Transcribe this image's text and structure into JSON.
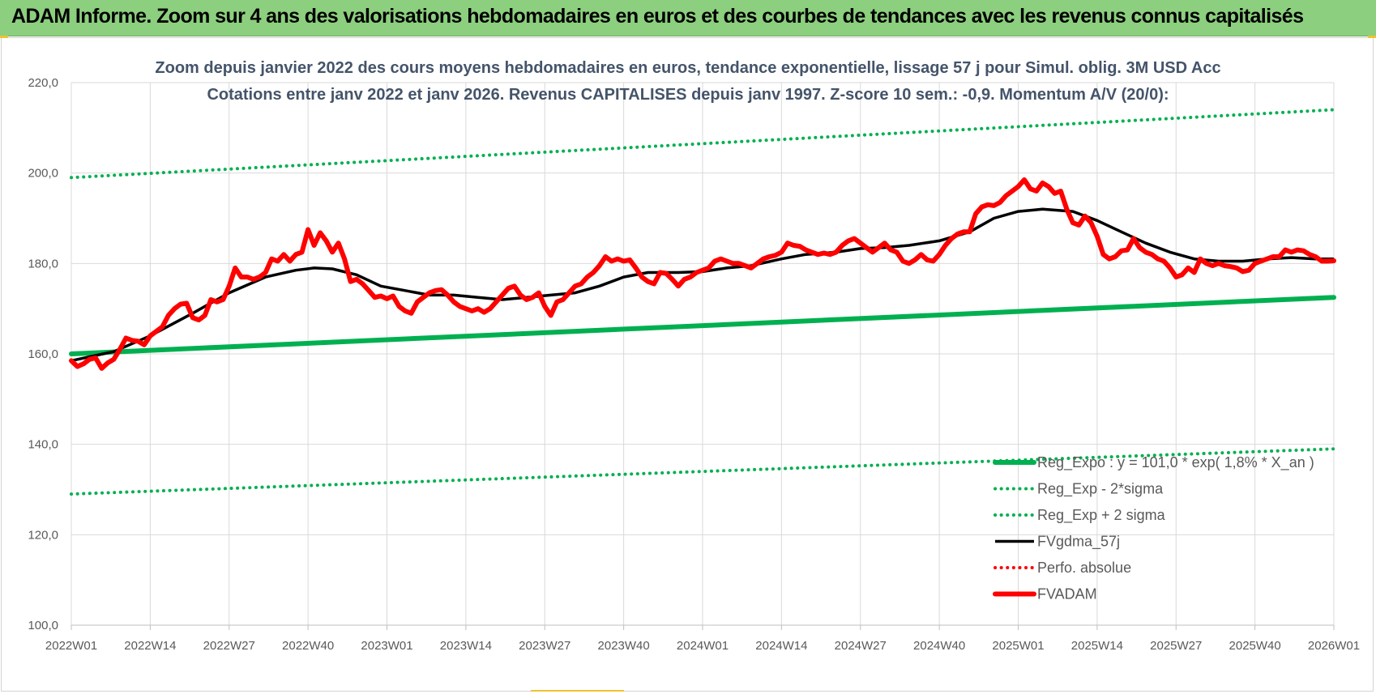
{
  "header": {
    "title": "ADAM Informe. Zoom sur 4 ans des valorisations hebdomadaires en euros et des courbes de tendances avec les revenus connus capitalisés"
  },
  "colors": {
    "header_bg": "#8ccf7e",
    "trend": "#00b050",
    "moving_average": "#000000",
    "price": "#ff0000",
    "title_text": "#44546a"
  },
  "chart_data": {
    "type": "line",
    "title_lines": [
      "Zoom depuis janvier 2022 des cours moyens hebdomadaires en euros, tendance exponentielle, lissage 57 j pour Simul. oblig. 3M USD Acc",
      "Cotations entre janv 2022 et janv 2026. Revenus CAPITALISES depuis janv 1997. Z-score 10 sem.: -0,9. Momentum A/V (20/0):"
    ],
    "x_tick_labels": [
      "2022W01",
      "2022W14",
      "2022W27",
      "2022W40",
      "2023W01",
      "2023W14",
      "2023W27",
      "2023W40",
      "2024W01",
      "2024W14",
      "2024W27",
      "2024W40",
      "2025W01",
      "2025W14",
      "2025W27",
      "2025W40",
      "2026W01"
    ],
    "x_range_weeks": [
      0,
      208
    ],
    "ylim": [
      100,
      220
    ],
    "y_ticks": [
      "100,0",
      "120,0",
      "140,0",
      "160,0",
      "180,0",
      "200,0",
      "220,0"
    ],
    "y_tick_values": [
      100,
      120,
      140,
      160,
      180,
      200,
      220
    ],
    "grid": "vertical and horizontal",
    "legend_position": "bottom-right",
    "series": [
      {
        "name": "Reg_Expo : y = 101,0 * exp( 1,8% *  X_an )",
        "key": "reg",
        "style": "solid-thick",
        "color": "#00b050",
        "points": [
          [
            0,
            160.0
          ],
          [
            208,
            172.5
          ]
        ]
      },
      {
        "name": "Reg_Exp - 2*sigma",
        "key": "lower",
        "style": "dotted",
        "color": "#00b050",
        "points": [
          [
            0,
            129.0
          ],
          [
            208,
            139.0
          ]
        ]
      },
      {
        "name": "Reg_Exp + 2 sigma",
        "key": "upper",
        "style": "dotted",
        "color": "#00b050",
        "points": [
          [
            0,
            199.0
          ],
          [
            208,
            214.0
          ]
        ]
      },
      {
        "name": "FVgdma_57j",
        "key": "ma",
        "style": "solid",
        "color": "#000000",
        "points": [
          [
            0,
            158.5
          ],
          [
            7,
            160.5
          ],
          [
            13,
            164
          ],
          [
            20,
            169
          ],
          [
            26,
            173.5
          ],
          [
            32,
            177
          ],
          [
            37,
            178.5
          ],
          [
            40,
            179
          ],
          [
            43,
            178.8
          ],
          [
            47,
            177.5
          ],
          [
            51,
            175
          ],
          [
            55,
            174
          ],
          [
            59,
            173
          ],
          [
            63,
            173
          ],
          [
            67,
            172.5
          ],
          [
            71,
            172
          ],
          [
            75,
            172.5
          ],
          [
            79,
            173
          ],
          [
            83,
            173.5
          ],
          [
            87,
            175
          ],
          [
            91,
            177
          ],
          [
            95,
            178
          ],
          [
            100,
            178
          ],
          [
            104,
            178.2
          ],
          [
            108,
            179
          ],
          [
            112,
            179.5
          ],
          [
            117,
            181
          ],
          [
            121,
            182
          ],
          [
            126,
            182.5
          ],
          [
            130,
            183.3
          ],
          [
            134,
            183.5
          ],
          [
            138,
            184
          ],
          [
            143,
            185
          ],
          [
            148,
            187
          ],
          [
            152,
            190
          ],
          [
            156,
            191.5
          ],
          [
            160,
            192
          ],
          [
            165,
            191.5
          ],
          [
            169,
            189.5
          ],
          [
            173,
            187
          ],
          [
            177,
            184.5
          ],
          [
            181,
            182.5
          ],
          [
            185,
            181
          ],
          [
            189,
            180.5
          ],
          [
            193,
            180.5
          ],
          [
            197,
            181
          ],
          [
            201,
            181.3
          ],
          [
            205,
            181
          ],
          [
            208,
            181
          ]
        ]
      },
      {
        "name": "Perfo. absolue",
        "key": "perf",
        "style": "dotted",
        "color": "#ff0000",
        "points": []
      },
      {
        "name": "FVADAM",
        "key": "price",
        "style": "solid-thick",
        "color": "#ff0000",
        "points": [
          [
            0,
            158.5
          ],
          [
            1,
            157.2
          ],
          [
            2,
            157.8
          ],
          [
            3,
            158.8
          ],
          [
            4,
            159.1
          ],
          [
            5,
            156.8
          ],
          [
            6,
            158
          ],
          [
            7,
            158.8
          ],
          [
            8,
            161
          ],
          [
            9,
            163.5
          ],
          [
            10,
            163
          ],
          [
            11,
            162.8
          ],
          [
            12,
            162
          ],
          [
            13,
            164
          ],
          [
            14,
            165
          ],
          [
            15,
            166
          ],
          [
            16,
            168.5
          ],
          [
            17,
            170
          ],
          [
            18,
            171
          ],
          [
            19,
            171.2
          ],
          [
            20,
            168
          ],
          [
            21,
            167.5
          ],
          [
            22,
            168.5
          ],
          [
            23,
            172
          ],
          [
            24,
            171.5
          ],
          [
            25,
            172
          ],
          [
            26,
            175
          ],
          [
            27,
            179
          ],
          [
            28,
            177
          ],
          [
            29,
            177
          ],
          [
            30,
            176.5
          ],
          [
            31,
            177
          ],
          [
            32,
            178
          ],
          [
            33,
            181
          ],
          [
            34,
            180.5
          ],
          [
            35,
            182
          ],
          [
            36,
            180.5
          ],
          [
            37,
            182
          ],
          [
            38,
            182.5
          ],
          [
            39,
            187.5
          ],
          [
            40,
            184
          ],
          [
            41,
            186.8
          ],
          [
            42,
            185
          ],
          [
            43,
            182.5
          ],
          [
            44,
            184.5
          ],
          [
            45,
            181
          ],
          [
            46,
            176
          ],
          [
            47,
            176.5
          ],
          [
            48,
            175.5
          ],
          [
            49,
            174
          ],
          [
            50,
            172.5
          ],
          [
            51,
            172.8
          ],
          [
            52,
            172.2
          ],
          [
            53,
            172.8
          ],
          [
            54,
            170.5
          ],
          [
            55,
            169.5
          ],
          [
            56,
            169
          ],
          [
            57,
            171.5
          ],
          [
            58,
            172.5
          ],
          [
            59,
            173.5
          ],
          [
            60,
            174
          ],
          [
            61,
            174.2
          ],
          [
            62,
            173
          ],
          [
            63,
            171.5
          ],
          [
            64,
            170.5
          ],
          [
            65,
            170
          ],
          [
            66,
            169.5
          ],
          [
            67,
            170
          ],
          [
            68,
            169.2
          ],
          [
            69,
            170
          ],
          [
            70,
            171.5
          ],
          [
            71,
            173
          ],
          [
            72,
            174.5
          ],
          [
            73,
            175
          ],
          [
            74,
            173
          ],
          [
            75,
            172
          ],
          [
            76,
            172.5
          ],
          [
            77,
            173.5
          ],
          [
            78,
            170.5
          ],
          [
            79,
            168.5
          ],
          [
            80,
            171.5
          ],
          [
            81,
            172
          ],
          [
            82,
            173.5
          ],
          [
            83,
            175
          ],
          [
            84,
            175.5
          ],
          [
            85,
            177
          ],
          [
            86,
            178
          ],
          [
            87,
            179.5
          ],
          [
            88,
            181.5
          ],
          [
            89,
            180.5
          ],
          [
            90,
            181
          ],
          [
            91,
            180.5
          ],
          [
            92,
            180.8
          ],
          [
            93,
            179
          ],
          [
            94,
            177
          ],
          [
            95,
            176
          ],
          [
            96,
            175.5
          ],
          [
            97,
            178
          ],
          [
            98,
            177.8
          ],
          [
            99,
            176.5
          ],
          [
            100,
            175
          ],
          [
            101,
            176.5
          ],
          [
            102,
            177
          ],
          [
            103,
            178
          ],
          [
            104,
            178.5
          ],
          [
            105,
            179
          ],
          [
            106,
            180.5
          ],
          [
            107,
            181
          ],
          [
            108,
            180.5
          ],
          [
            109,
            180
          ],
          [
            110,
            180
          ],
          [
            111,
            179.5
          ],
          [
            112,
            179
          ],
          [
            113,
            180
          ],
          [
            114,
            181
          ],
          [
            115,
            181.5
          ],
          [
            116,
            181.8
          ],
          [
            117,
            182.5
          ],
          [
            118,
            184.5
          ],
          [
            119,
            184
          ],
          [
            120,
            183.8
          ],
          [
            121,
            183
          ],
          [
            122,
            182.5
          ],
          [
            123,
            182
          ],
          [
            124,
            182.3
          ],
          [
            125,
            182
          ],
          [
            126,
            182.5
          ],
          [
            127,
            184
          ],
          [
            128,
            185
          ],
          [
            129,
            185.5
          ],
          [
            130,
            184.5
          ],
          [
            131,
            183.5
          ],
          [
            132,
            182.5
          ],
          [
            133,
            183.5
          ],
          [
            134,
            184.5
          ],
          [
            135,
            183
          ],
          [
            136,
            182.5
          ],
          [
            137,
            180.5
          ],
          [
            138,
            180
          ],
          [
            139,
            180.8
          ],
          [
            140,
            182
          ],
          [
            141,
            180.8
          ],
          [
            142,
            180.5
          ],
          [
            143,
            182
          ],
          [
            144,
            184
          ],
          [
            145,
            185.5
          ],
          [
            146,
            186.5
          ],
          [
            147,
            187
          ],
          [
            148,
            187
          ],
          [
            149,
            191
          ],
          [
            150,
            192.5
          ],
          [
            151,
            193
          ],
          [
            152,
            192.8
          ],
          [
            153,
            193.5
          ],
          [
            154,
            195
          ],
          [
            155,
            196
          ],
          [
            156,
            197
          ],
          [
            157,
            198.5
          ],
          [
            158,
            196.5
          ],
          [
            159,
            196
          ],
          [
            160,
            197.8
          ],
          [
            161,
            197
          ],
          [
            162,
            195.5
          ],
          [
            163,
            196
          ],
          [
            164,
            192
          ],
          [
            165,
            189
          ],
          [
            166,
            188.5
          ],
          [
            167,
            190.5
          ],
          [
            168,
            189
          ],
          [
            169,
            186
          ],
          [
            170,
            182
          ],
          [
            171,
            181
          ],
          [
            172,
            181.5
          ],
          [
            173,
            182.8
          ],
          [
            174,
            183
          ],
          [
            175,
            185.5
          ],
          [
            176,
            183.5
          ],
          [
            177,
            182.5
          ],
          [
            178,
            182
          ],
          [
            179,
            181
          ],
          [
            180,
            180.5
          ],
          [
            181,
            179
          ],
          [
            182,
            177
          ],
          [
            183,
            177.5
          ],
          [
            184,
            179
          ],
          [
            185,
            178
          ],
          [
            186,
            181
          ],
          [
            187,
            180
          ],
          [
            188,
            179.5
          ],
          [
            189,
            180
          ],
          [
            190,
            179.5
          ],
          [
            191,
            179.3
          ],
          [
            192,
            179
          ],
          [
            193,
            178.2
          ],
          [
            194,
            178.5
          ],
          [
            195,
            180
          ],
          [
            196,
            180.5
          ],
          [
            197,
            181
          ],
          [
            198,
            181.5
          ],
          [
            199,
            181.5
          ],
          [
            200,
            183
          ],
          [
            201,
            182.5
          ],
          [
            202,
            183
          ],
          [
            203,
            182.8
          ],
          [
            204,
            182
          ],
          [
            205,
            181.5
          ],
          [
            206,
            180.5
          ],
          [
            207,
            180.5
          ],
          [
            208,
            180.6
          ]
        ]
      }
    ]
  }
}
